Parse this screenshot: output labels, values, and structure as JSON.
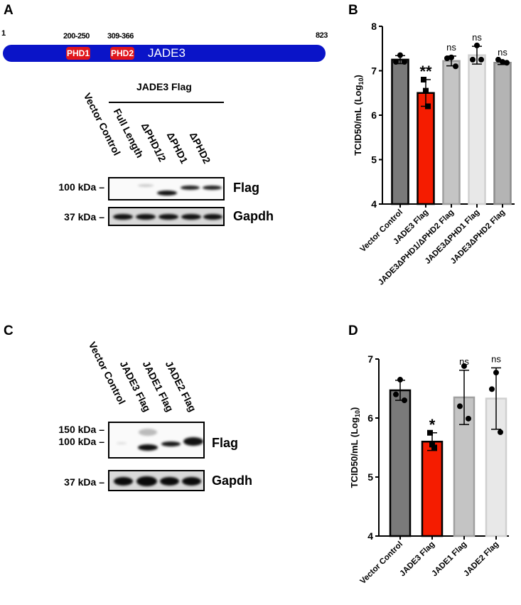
{
  "panels": {
    "a": "A",
    "b": "B",
    "c": "C",
    "d": "D"
  },
  "protein": {
    "name": "JADE3",
    "start": "1",
    "end": "823",
    "domains": [
      {
        "label": "PHD1",
        "range": "200-250"
      },
      {
        "label": "PHD2",
        "range": "309-366"
      }
    ]
  },
  "blot_a": {
    "group_label": "JADE3 Flag",
    "lanes": [
      "Vector Control",
      "Full Length",
      "ΔPHD1/2",
      "ΔPHD1",
      "ΔPHD2"
    ],
    "markers": {
      "flag": "100 kDa –",
      "gapdh": "37 kDa –"
    },
    "rows": {
      "flag": "Flag",
      "gapdh": "Gapdh"
    }
  },
  "blot_c": {
    "lanes": [
      "Vector Control",
      "JADE3 Flag",
      "JADE1 Flag",
      "JADE2 Flag"
    ],
    "markers": {
      "m150": "150 kDa –",
      "m100": "100 kDa –",
      "gapdh": "37 kDa –"
    },
    "rows": {
      "flag": "Flag",
      "gapdh": "Gapdh"
    }
  },
  "chart_data": [
    {
      "type": "bar",
      "panel": "B",
      "ylabel_parts": [
        "TCID50/mL (Log",
        "10",
        ")"
      ],
      "ylim": [
        4,
        8
      ],
      "yticks": [
        "4",
        "5",
        "6",
        "7",
        "8"
      ],
      "categories": [
        "Vector Control",
        "JADE3 Flag",
        "JADE3ΔPHD1/ΔPHD2 Flag",
        "JADE3ΔPHD1 Flag",
        "JADE3ΔPHD2 Flag"
      ],
      "values": [
        7.25,
        6.5,
        7.22,
        7.35,
        7.18
      ],
      "errors": [
        0.09,
        0.3,
        0.11,
        0.2,
        0.04
      ],
      "points": [
        [
          7.35,
          7.2,
          7.2
        ],
        [
          6.8,
          6.55,
          6.2
        ],
        [
          7.3,
          7.28,
          7.1
        ],
        [
          7.57,
          7.25,
          7.25
        ],
        [
          7.2,
          7.25,
          7.18
        ]
      ],
      "significance": [
        "",
        "**",
        "ns",
        "ns",
        "ns"
      ],
      "colors": [
        "#7a7a7a",
        "#f51c00",
        "#c4c4c4",
        "#e8e8e8",
        "#b4b4b4"
      ],
      "borders": [
        "#000000",
        "#000000",
        "#a0a0a0",
        "#d0d0d0",
        "#8c8c8c"
      ]
    },
    {
      "type": "bar",
      "panel": "D",
      "ylabel_parts": [
        "TCID50/mL (Log",
        "10",
        ")"
      ],
      "ylim": [
        4,
        7
      ],
      "yticks": [
        "4",
        "5",
        "6",
        "7"
      ],
      "categories": [
        "Vector Control",
        "JADE3 Flag",
        "JADE1 Flag",
        "JADE2 Flag"
      ],
      "values": [
        6.47,
        5.6,
        6.35,
        6.33
      ],
      "errors": [
        0.17,
        0.15,
        0.46,
        0.52
      ],
      "points": [
        [
          6.65,
          6.4,
          6.3
        ],
        [
          5.75,
          5.55,
          5.5
        ],
        [
          6.88,
          6.2,
          5.99
        ],
        [
          6.77,
          6.49,
          5.76
        ]
      ],
      "significance": [
        "",
        "*",
        "ns",
        "ns"
      ],
      "colors": [
        "#7a7a7a",
        "#f51c00",
        "#c4c4c4",
        "#e8e8e8"
      ],
      "borders": [
        "#000000",
        "#000000",
        "#a0a0a0",
        "#d0d0d0"
      ]
    }
  ]
}
